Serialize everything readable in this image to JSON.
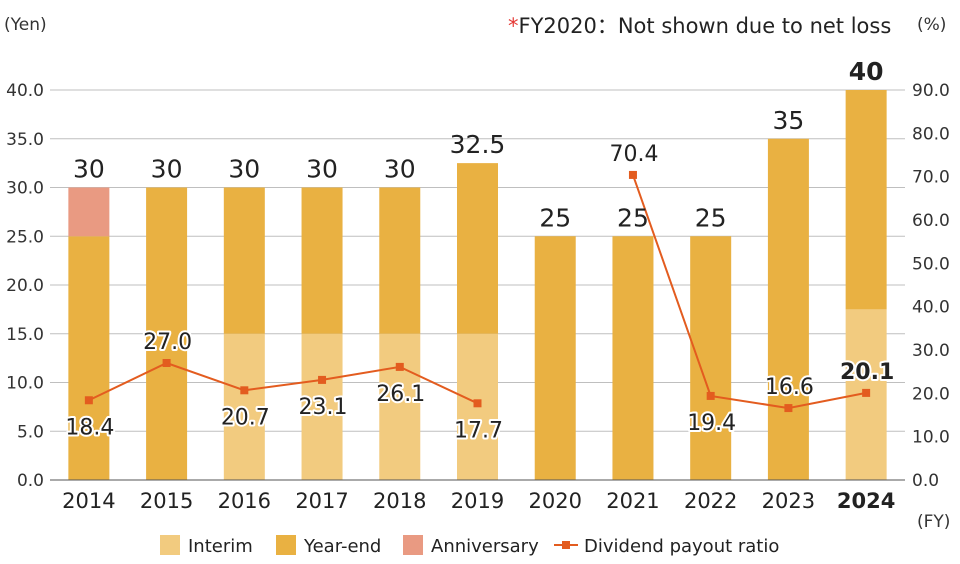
{
  "chart_data": {
    "type": "bar",
    "categories": [
      "2014",
      "2015",
      "2016",
      "2017",
      "2018",
      "2019",
      "2020",
      "2021",
      "2022",
      "2023",
      "2024"
    ],
    "highlight_category": "2024",
    "series": [
      {
        "name": "Interim",
        "type": "bar",
        "color": "#f2cb7f",
        "values": [
          0,
          0,
          15,
          15,
          15,
          15,
          0,
          0,
          0,
          0,
          17.5
        ]
      },
      {
        "name": "Year-end",
        "type": "bar",
        "color": "#e9b142",
        "values": [
          25,
          30,
          15,
          15,
          15,
          17.5,
          25,
          25,
          25,
          35,
          22.5
        ]
      },
      {
        "name": "Anniversary",
        "type": "bar",
        "color": "#e99a82",
        "values": [
          5,
          0,
          0,
          0,
          0,
          0,
          0,
          0,
          0,
          0,
          0
        ]
      },
      {
        "name": "Dividend payout ratio",
        "type": "line",
        "axis": "right",
        "color": "#e35c1f",
        "values": [
          18.4,
          27.0,
          20.7,
          23.1,
          26.1,
          17.7,
          null,
          70.4,
          19.4,
          16.6,
          20.1
        ],
        "labels": [
          "18.4",
          "27.0",
          "20.7",
          "23.1",
          "26.1",
          "17.7",
          "",
          "70.4",
          "19.4",
          "16.6",
          "20.1"
        ]
      }
    ],
    "totals": [
      "30",
      "30",
      "30",
      "30",
      "30",
      "32.5",
      "25",
      "25",
      "25",
      "35",
      "40"
    ],
    "left_axis": {
      "unit": "(Yen)",
      "ylim": [
        0,
        40
      ],
      "ticks": [
        "0.0",
        "5.0",
        "10.0",
        "15.0",
        "20.0",
        "25.0",
        "30.0",
        "35.0",
        "40.0"
      ]
    },
    "right_axis": {
      "unit": "(%)",
      "ylim": [
        0,
        90
      ],
      "ticks": [
        "0.0",
        "10.0",
        "20.0",
        "30.0",
        "40.0",
        "50.0",
        "60.0",
        "70.0",
        "80.0",
        "90.0"
      ]
    },
    "x_unit": "(FY)",
    "note_star": "*",
    "note": "FY2020：Not shown due to net loss",
    "grid": true,
    "legend_position": "bottom"
  }
}
